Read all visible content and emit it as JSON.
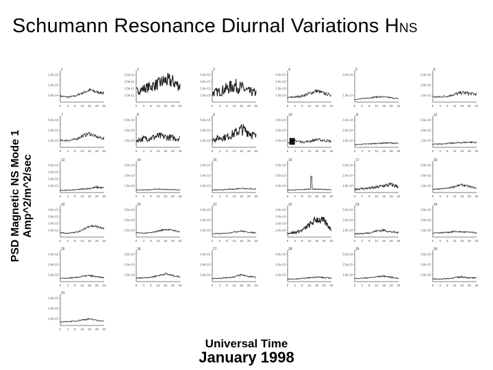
{
  "title": {
    "main": "Schumann Resonance Diurnal Variations H",
    "subscript": "NS"
  },
  "ylabel": {
    "line1": "PSD Magnetic NS Mode 1",
    "line2": "Amp^2/m^2/sec"
  },
  "xlabel": {
    "line1": "Universal Time",
    "line2": "January 1998"
  },
  "chart_data": [
    {
      "day": 1,
      "type": "line",
      "x": [
        0,
        4,
        8,
        12,
        16,
        20,
        24
      ],
      "ylim": [
        0,
        1.5e-13
      ],
      "yticks": [
        "1.5e-13",
        "1.0e-13",
        "5.0e-14"
      ],
      "values": [
        3e-14,
        2.5e-14,
        3e-14,
        4.5e-14,
        6e-14,
        5e-14,
        4.5e-14
      ],
      "noise": 0.15,
      "lw": 0.8
    },
    {
      "day": 2,
      "type": "line",
      "x": [
        0,
        4,
        8,
        12,
        16,
        20,
        24
      ],
      "ylim": [
        0,
        2.5e-11
      ],
      "yticks": [
        "2.5e-11",
        "2.0e-11",
        "1.5e-11",
        "1.0e-11"
      ],
      "values": [
        9e-12,
        1.1e-11,
        1.3e-11,
        1.5e-11,
        1.8e-11,
        1.7e-11,
        1.3e-11
      ],
      "noise": 0.35,
      "lw": 1.2
    },
    {
      "day": 3,
      "type": "line",
      "x": [
        0,
        4,
        8,
        12,
        16,
        20,
        24
      ],
      "ylim": [
        0,
        4e-13
      ],
      "yticks": [
        "4.0e-13",
        "3.0e-13",
        "2.0e-13",
        "1.0e-13"
      ],
      "values": [
        1.2e-13,
        1.4e-13,
        1.8e-13,
        2.2e-13,
        1.9e-13,
        1.4e-13,
        1.2e-13
      ],
      "noise": 0.45,
      "lw": 1.2
    },
    {
      "day": 4,
      "type": "line",
      "x": [
        0,
        4,
        8,
        12,
        16,
        20,
        24
      ],
      "ylim": [
        0,
        3.5e-13
      ],
      "yticks": [
        "3.0e-13",
        "2.0e-13",
        "1.5e-13",
        "1.0e-13"
      ],
      "values": [
        5e-14,
        6e-14,
        7e-14,
        1e-13,
        1.3e-13,
        1e-13,
        8e-14
      ],
      "noise": 0.2,
      "lw": 0.8
    },
    {
      "day": 5,
      "type": "line",
      "x": [
        0,
        4,
        8,
        12,
        16,
        20,
        24
      ],
      "ylim": [
        0,
        3.5e-13
      ],
      "yticks": [
        "3.0e-13",
        "1.0e-13"
      ],
      "values": [
        3e-14,
        4e-14,
        5e-14,
        6e-14,
        6e-14,
        5e-14,
        4e-14
      ],
      "noise": 0.15,
      "lw": 0.8
    },
    {
      "day": 6,
      "type": "line",
      "x": [
        0,
        4,
        8,
        12,
        16,
        20,
        24
      ],
      "ylim": [
        0,
        3.5e-13
      ],
      "yticks": [
        "3.4e-13",
        "2.0e-13",
        "1.0e-13"
      ],
      "values": [
        6e-14,
        6e-14,
        7e-14,
        9e-14,
        1.1e-13,
        1e-13,
        9e-14
      ],
      "noise": 0.2,
      "lw": 0.8
    },
    {
      "day": 7,
      "type": "line",
      "x": [
        0,
        4,
        8,
        12,
        16,
        20,
        24
      ],
      "ylim": [
        0,
        3.5e-13
      ],
      "yticks": [
        "3.0e-13",
        "2.0e-13",
        "1.0e-13"
      ],
      "values": [
        8e-14,
        8e-14,
        9e-14,
        1.3e-13,
        1.6e-13,
        1.2e-13,
        1e-13
      ],
      "noise": 0.15,
      "lw": 0.8
    },
    {
      "day": 8,
      "type": "line",
      "x": [
        0,
        4,
        8,
        12,
        16,
        20,
        24
      ],
      "ylim": [
        0,
        3.5e-13
      ],
      "yticks": [
        "3.0e-13",
        "2.0e-13",
        "1.0e-13"
      ],
      "values": [
        8e-14,
        1e-13,
        1.1e-13,
        1.3e-13,
        1.2e-13,
        1.1e-13,
        1e-13
      ],
      "noise": 0.35,
      "lw": 1.0
    },
    {
      "day": 9,
      "type": "line",
      "x": [
        0,
        4,
        8,
        12,
        16,
        20,
        24
      ],
      "ylim": [
        0,
        3.5e-13
      ],
      "yticks": [
        "3.0e-13",
        "2.0e-13",
        "1.0e-13"
      ],
      "values": [
        9e-14,
        1.1e-13,
        1.2e-13,
        1.6e-13,
        2.1e-13,
        1.8e-13,
        1.2e-13
      ],
      "noise": 0.35,
      "lw": 1.1
    },
    {
      "day": 10,
      "type": "line",
      "x": [
        0,
        4,
        8,
        12,
        16,
        20,
        24
      ],
      "ylim": [
        0,
        3.5e-13
      ],
      "yticks": [
        "3.0e-13",
        "2.0e-13",
        "1.0e-13"
      ],
      "values": [
        6e-14,
        8e-14,
        6e-14,
        7e-14,
        9e-14,
        8e-14,
        7e-14
      ],
      "noise": 0.2,
      "lw": 0.8,
      "block": [
        1,
        4,
        0.35
      ]
    },
    {
      "day": 11,
      "type": "line",
      "x": [
        0,
        4,
        8,
        12,
        16,
        20,
        24
      ],
      "ylim": [
        0,
        3.5e-13
      ],
      "yticks": [
        "3.0e-13",
        "2.0e-13",
        "1.0e-13"
      ],
      "values": [
        3e-14,
        3.5e-14,
        4e-14,
        4.5e-14,
        5e-14,
        5e-14,
        4.5e-14
      ],
      "noise": 0.15,
      "lw": 0.8
    },
    {
      "day": 12,
      "type": "line",
      "x": [
        0,
        4,
        8,
        12,
        16,
        20,
        24
      ],
      "ylim": [
        0,
        3.5e-13
      ],
      "yticks": [
        "3.0e-13",
        "2.0e-13",
        "1.0e-13"
      ],
      "values": [
        3.5e-14,
        4e-14,
        4.5e-14,
        5e-14,
        5.5e-14,
        6e-14,
        5.5e-14
      ],
      "noise": 0.15,
      "lw": 0.8
    },
    {
      "day": 13,
      "type": "line",
      "x": [
        0,
        4,
        8,
        12,
        16,
        20,
        24
      ],
      "ylim": [
        0,
        4e-13
      ],
      "yticks": [
        "4.0e-13",
        "3.0e-13",
        "2.0e-13",
        "1.0e-13"
      ],
      "values": [
        3e-14,
        3e-14,
        3.5e-14,
        4.5e-14,
        5.5e-14,
        7e-14,
        6e-14
      ],
      "noise": 0.2,
      "lw": 0.8
    },
    {
      "day": 14,
      "type": "line",
      "x": [
        0,
        4,
        8,
        12,
        16,
        20,
        24
      ],
      "ylim": [
        0,
        3.5e-13
      ],
      "yticks": [
        "3.0e-13",
        "2.0e-13",
        "1.0e-13"
      ],
      "values": [
        3e-14,
        3e-14,
        3.5e-14,
        4e-14,
        3.5e-14,
        3.5e-14,
        3e-14
      ],
      "noise": 0.15,
      "lw": 0.8
    },
    {
      "day": 15,
      "type": "line",
      "x": [
        0,
        4,
        8,
        12,
        16,
        20,
        24
      ],
      "ylim": [
        0,
        3.5e-13
      ],
      "yticks": [
        "3.0e-13",
        "2.0e-13",
        "1.0e-13"
      ],
      "values": [
        3e-14,
        3e-14,
        3.5e-14,
        4e-14,
        5e-14,
        4.5e-14,
        4e-14
      ],
      "noise": 0.15,
      "lw": 0.8
    },
    {
      "day": 16,
      "type": "line",
      "x": [
        0,
        4,
        8,
        12,
        16,
        20,
        24
      ],
      "ylim": [
        0,
        3.5e-13
      ],
      "yticks": [
        "3.0e-13",
        "2.0e-13",
        "1.0e-13"
      ],
      "values": [
        3e-14,
        3e-14,
        3.5e-14,
        4e-14,
        4e-14,
        3.5e-14,
        3e-14
      ],
      "noise": 0.15,
      "lw": 0.8,
      "spike": [
        13,
        1.9e-13
      ]
    },
    {
      "day": 17,
      "type": "line",
      "x": [
        0,
        4,
        8,
        12,
        16,
        20,
        24
      ],
      "ylim": [
        0,
        3.5e-13
      ],
      "yticks": [
        "3.0e-13",
        "2.0e-13",
        "1.0e-13"
      ],
      "values": [
        4e-14,
        4.5e-14,
        5e-14,
        6e-14,
        8e-14,
        9e-14,
        7e-14
      ],
      "noise": 0.3,
      "lw": 0.9
    },
    {
      "day": 18,
      "type": "line",
      "x": [
        0,
        4,
        8,
        12,
        16,
        20,
        24
      ],
      "ylim": [
        0,
        3.5e-13
      ],
      "yticks": [
        "3.0e-13",
        "2.0e-13",
        "1.0e-13"
      ],
      "values": [
        3.5e-14,
        4e-14,
        5e-14,
        7e-14,
        9e-14,
        7e-14,
        5e-14
      ],
      "noise": 0.15,
      "lw": 0.8
    },
    {
      "day": 19,
      "type": "line",
      "x": [
        0,
        4,
        8,
        12,
        16,
        20,
        24
      ],
      "ylim": [
        0,
        4e-13
      ],
      "yticks": [
        "4.0e-13",
        "3.0e-13",
        "2.0e-13",
        "1.0e-13"
      ],
      "values": [
        6e-14,
        5e-14,
        6e-14,
        9e-14,
        1.5e-13,
        1.4e-13,
        1.1e-13
      ],
      "noise": 0.12,
      "lw": 0.8
    },
    {
      "day": 20,
      "type": "line",
      "x": [
        0,
        4,
        8,
        12,
        16,
        20,
        24
      ],
      "ylim": [
        0,
        3.5e-13
      ],
      "yticks": [
        "3.0e-13",
        "2.0e-13",
        "1.0e-13"
      ],
      "values": [
        5e-14,
        4.5e-14,
        5e-14,
        7e-14,
        9e-14,
        8e-14,
        6e-14
      ],
      "noise": 0.12,
      "lw": 0.8
    },
    {
      "day": 21,
      "type": "line",
      "x": [
        0,
        4,
        8,
        12,
        16,
        20,
        24
      ],
      "ylim": [
        0,
        3.5e-13
      ],
      "yticks": [
        "3.0e-13",
        "2.0e-13",
        "1.0e-13"
      ],
      "values": [
        4e-14,
        4e-14,
        4.5e-14,
        6e-14,
        7e-14,
        5.5e-14,
        5e-14
      ],
      "noise": 0.12,
      "lw": 0.8
    },
    {
      "day": 22,
      "type": "line",
      "x": [
        0,
        4,
        8,
        12,
        16,
        20,
        24
      ],
      "ylim": [
        0,
        4e-13
      ],
      "yticks": [
        "4.0e-13",
        "3.0e-13",
        "2.0e-13",
        "1.0e-13"
      ],
      "values": [
        5e-14,
        6e-14,
        9e-14,
        1.6e-13,
        2.4e-13,
        2.1e-13,
        1e-13
      ],
      "noise": 0.25,
      "lw": 1.1
    },
    {
      "day": 23,
      "type": "line",
      "x": [
        0,
        4,
        8,
        12,
        16,
        20,
        24
      ],
      "ylim": [
        0,
        3.5e-13
      ],
      "yticks": [
        "3.0e-13",
        "2.0e-13",
        "1.0e-13"
      ],
      "values": [
        4e-14,
        4e-14,
        5e-14,
        7e-14,
        8e-14,
        6e-14,
        5e-14
      ],
      "noise": 0.2,
      "lw": 0.8
    },
    {
      "day": 24,
      "type": "line",
      "x": [
        0,
        4,
        8,
        12,
        16,
        20,
        24
      ],
      "ylim": [
        0,
        3.5e-13
      ],
      "yticks": [
        "3.0e-13",
        "2.0e-13",
        "1.0e-13"
      ],
      "values": [
        5e-14,
        5e-14,
        5.5e-14,
        6.5e-14,
        6e-14,
        5.5e-14,
        5e-14
      ],
      "noise": 0.15,
      "lw": 0.8
    },
    {
      "day": 25,
      "type": "line",
      "x": [
        0,
        4,
        8,
        12,
        16,
        20,
        24
      ],
      "ylim": [
        0,
        3.5e-13
      ],
      "yticks": [
        "3.4e-13",
        "2.0e-13",
        "1.0e-13"
      ],
      "values": [
        3.5e-14,
        4e-14,
        4.5e-14,
        6e-14,
        7e-14,
        5.5e-14,
        4.5e-14
      ],
      "noise": 0.15,
      "lw": 0.8
    },
    {
      "day": 26,
      "type": "line",
      "x": [
        0,
        4,
        8,
        12,
        16,
        20,
        24
      ],
      "ylim": [
        0,
        3.5e-13
      ],
      "yticks": [
        "3.0e-13",
        "2.0e-13",
        "1.0e-13"
      ],
      "values": [
        4e-14,
        4.5e-14,
        5e-14,
        7e-14,
        9e-14,
        7e-14,
        5.5e-14
      ],
      "noise": 0.15,
      "lw": 0.8
    },
    {
      "day": 27,
      "type": "line",
      "x": [
        0,
        4,
        8,
        12,
        16,
        20,
        24
      ],
      "ylim": [
        0,
        3.5e-13
      ],
      "yticks": [
        "3.0e-13",
        "2.0e-13",
        "1.0e-13"
      ],
      "values": [
        3.5e-14,
        4e-14,
        4.5e-14,
        5.5e-14,
        8e-14,
        6e-14,
        5e-14
      ],
      "noise": 0.15,
      "lw": 0.8
    },
    {
      "day": 28,
      "type": "line",
      "x": [
        0,
        4,
        8,
        12,
        16,
        20,
        24
      ],
      "ylim": [
        0,
        3.5e-13
      ],
      "yticks": [
        "3.0e-13",
        "2.0e-13",
        "1.0e-13"
      ],
      "values": [
        3e-14,
        3e-14,
        3.5e-14,
        4.5e-14,
        5.5e-14,
        4.5e-14,
        4e-14
      ],
      "noise": 0.15,
      "lw": 0.8
    },
    {
      "day": 29,
      "type": "line",
      "x": [
        0,
        4,
        8,
        12,
        16,
        20,
        24
      ],
      "ylim": [
        0,
        3.5e-13
      ],
      "yticks": [
        "3.0e-13",
        "2.0e-13",
        "1.0e-13"
      ],
      "values": [
        3.5e-14,
        4e-14,
        4.5e-14,
        5.5e-14,
        6.5e-14,
        5e-14,
        4e-14
      ],
      "noise": 0.15,
      "lw": 0.8
    },
    {
      "day": 30,
      "type": "line",
      "x": [
        0,
        4,
        8,
        12,
        16,
        20,
        24
      ],
      "ylim": [
        0,
        3.5e-13
      ],
      "yticks": [
        "3.0e-13",
        "2.0e-13",
        "1.0e-13"
      ],
      "values": [
        3e-14,
        3e-14,
        3.5e-14,
        4.5e-14,
        5.5e-14,
        4.5e-14,
        4e-14
      ],
      "noise": 0.18,
      "lw": 0.8
    },
    {
      "day": 31,
      "type": "line",
      "x": [
        0,
        4,
        8,
        12,
        16,
        20,
        24
      ],
      "ylim": [
        0,
        3.5e-13
      ],
      "yticks": [
        "3.0e-13",
        "2.0e-13",
        "1.0e-13"
      ],
      "values": [
        4e-14,
        4.5e-14,
        5e-14,
        6.5e-14,
        7.5e-14,
        6e-14,
        5e-14
      ],
      "noise": 0.12,
      "lw": 0.8
    }
  ]
}
